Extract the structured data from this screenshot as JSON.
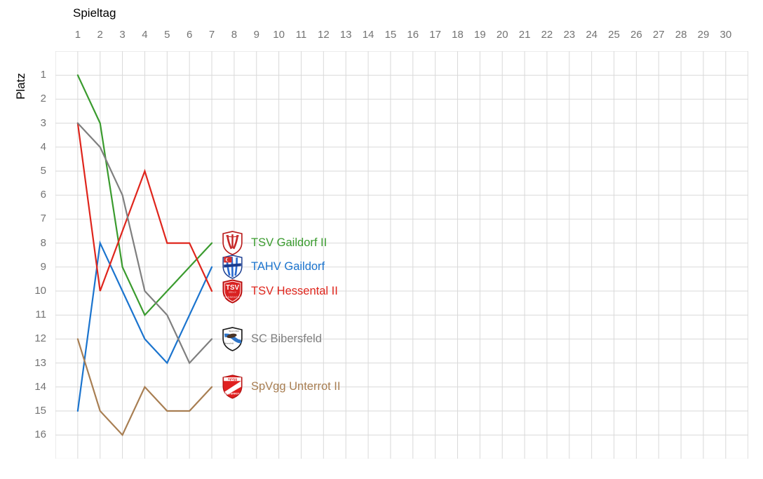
{
  "chart_data": {
    "type": "line",
    "x_axis_title": "Spieltag",
    "y_axis_title": "Platz",
    "x_axis_position": "top",
    "y_axis_reversed": true,
    "grid": true,
    "x_ticks": [
      1,
      2,
      3,
      4,
      5,
      6,
      7,
      8,
      9,
      10,
      11,
      12,
      13,
      14,
      15,
      16,
      17,
      18,
      19,
      20,
      21,
      22,
      23,
      24,
      25,
      26,
      27,
      28,
      29,
      30
    ],
    "y_ticks": [
      1,
      2,
      3,
      4,
      5,
      6,
      7,
      8,
      9,
      10,
      11,
      12,
      13,
      14,
      15,
      16
    ],
    "x_range": [
      0,
      31
    ],
    "y_range": [
      0,
      17
    ],
    "legend_position": "at-line-ends",
    "series": [
      {
        "name": "TSV Gaildorf II",
        "color": "#3A9B2E",
        "values": [
          1,
          3,
          9,
          11,
          10,
          9,
          8
        ]
      },
      {
        "name": "TAHV Gaildorf",
        "color": "#1B74CE",
        "values": [
          15,
          8,
          10,
          12,
          13,
          11,
          9
        ]
      },
      {
        "name": "TSV Hessental II",
        "color": "#DF251C",
        "values": [
          3,
          10,
          null,
          5,
          8,
          8,
          10
        ]
      },
      {
        "name": "SC Bibersfeld",
        "color": "#7F7F7F",
        "values": [
          3,
          4,
          6,
          10,
          11,
          13,
          12
        ]
      },
      {
        "name": "SpVgg Unterrot II",
        "color": "#A87E52",
        "values": [
          12,
          15,
          16,
          14,
          15,
          15,
          14
        ]
      }
    ]
  },
  "crests": {
    "tsv_hessental": {
      "line1": "TSV",
      "line2": "HESSENTAL"
    },
    "sc_bibersfeld": {
      "line1": "Sport-Club",
      "line2": "Bibersfeld"
    },
    "spvgg_unterrot": {
      "line1": "SpVgg",
      "line2": "UNTERROT"
    }
  },
  "colors": {
    "grid": "#D9D9D9",
    "tick_label": "#737373",
    "axis_title": "#000000",
    "background": "#FFFFFF"
  }
}
